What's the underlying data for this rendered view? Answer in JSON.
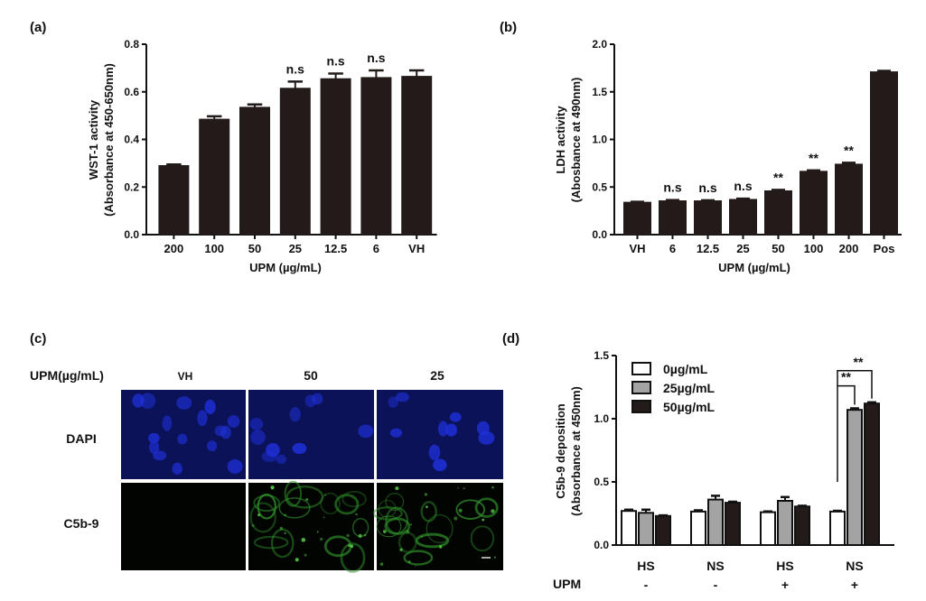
{
  "colors": {
    "black_bar": "#231b19",
    "gray_bar": "#a3a3a3",
    "white_bar": "#ffffff",
    "axis": "#111111",
    "dapi": "#0b1257",
    "c5b9": "#020402"
  },
  "panel_a": {
    "label": "(a)",
    "chart_data": {
      "type": "bar",
      "categories": [
        "200",
        "100",
        "50",
        "25",
        "12.5",
        "6",
        "VH"
      ],
      "values": [
        0.29,
        0.485,
        0.535,
        0.615,
        0.655,
        0.66,
        0.665
      ],
      "errors": [
        0.005,
        0.012,
        0.012,
        0.028,
        0.022,
        0.03,
        0.025
      ],
      "annotations": [
        "",
        "",
        "",
        "n.s",
        "n.s",
        "n.s",
        ""
      ],
      "ylabel": "WST-1 activity",
      "ylabel2": "(Absorbance at 450-650nm)",
      "xlabel": "UPM (µg/mL)",
      "ylim": [
        0,
        0.8
      ],
      "yticks": [
        "0.0",
        "0.2",
        "0.4",
        "0.6",
        "0.8"
      ],
      "grid": false
    }
  },
  "panel_b": {
    "label": "(b)",
    "chart_data": {
      "type": "bar",
      "categories": [
        "VH",
        "6",
        "12.5",
        "25",
        "50",
        "100",
        "200",
        "Pos"
      ],
      "values": [
        0.34,
        0.355,
        0.355,
        0.37,
        0.46,
        0.665,
        0.74,
        1.71
      ],
      "errors": [
        0.005,
        0.008,
        0.006,
        0.008,
        0.01,
        0.01,
        0.015,
        0.01
      ],
      "annotations": [
        "",
        "n.s",
        "n.s",
        "n.s",
        "**",
        "**",
        "**",
        ""
      ],
      "ylabel": "LDH activity",
      "ylabel2": "(Abosbance at 490nm)",
      "xlabel": "UPM (µg/mL)",
      "ylim": [
        0,
        2.0
      ],
      "yticks": [
        "0.0",
        "0.5",
        "1.0",
        "1.5",
        "2.0"
      ],
      "grid": false
    }
  },
  "panel_c": {
    "label": "(c)",
    "row_header": "UPM(µg/mL)",
    "columns": [
      "VH",
      "50",
      "25"
    ],
    "rows": [
      "DAPI",
      "C5b-9"
    ]
  },
  "panel_d": {
    "label": "(d)",
    "chart_data": {
      "type": "bar",
      "categories": [
        "HS",
        "NS",
        "HS",
        "NS"
      ],
      "upm_row_label": "UPM",
      "upm_signs": [
        "-",
        "-",
        "+",
        "+"
      ],
      "series": [
        {
          "name": "0µg/mL",
          "values": [
            0.27,
            0.265,
            0.26,
            0.265
          ],
          "errors": [
            0.01,
            0.01,
            0.006,
            0.006
          ]
        },
        {
          "name": "25µg/mL",
          "values": [
            0.255,
            0.36,
            0.35,
            1.07
          ],
          "errors": [
            0.025,
            0.03,
            0.03,
            0.012
          ]
        },
        {
          "name": "50µg/mL",
          "values": [
            0.23,
            0.335,
            0.305,
            1.12
          ],
          "errors": [
            0.005,
            0.008,
            0.006,
            0.01
          ]
        }
      ],
      "annotations": [
        "**",
        "**"
      ],
      "ylabel": "C5b-9 deposition",
      "ylabel2": "(Absorbance at 450nm)",
      "ylim": [
        0,
        1.5
      ],
      "yticks": [
        "0.0",
        "0.5",
        "1.0",
        "1.5"
      ],
      "legend": "top-left",
      "grid": false
    }
  }
}
